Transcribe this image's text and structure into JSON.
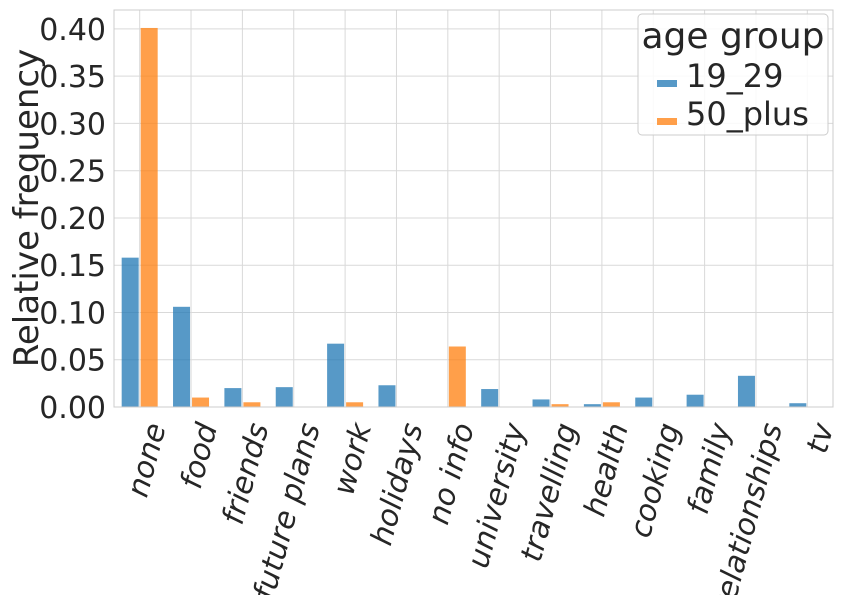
{
  "chart_data": {
    "type": "bar",
    "title": "",
    "xlabel": "",
    "ylabel": "Relative frequency",
    "ylim": [
      0,
      0.42
    ],
    "yticks": [
      "0.00",
      "0.05",
      "0.10",
      "0.15",
      "0.20",
      "0.25",
      "0.30",
      "0.35",
      "0.40"
    ],
    "grid": true,
    "legend": {
      "title": "age group",
      "placement": "top-right"
    },
    "categories": [
      "none",
      "food",
      "friends",
      "future plans",
      "work",
      "holidays",
      "no info",
      "university",
      "travelling",
      "health",
      "cooking",
      "family",
      "relationships",
      "tv"
    ],
    "series": [
      {
        "name": "19_29",
        "color": "#1f77b4",
        "values": [
          0.158,
          0.106,
          0.02,
          0.021,
          0.067,
          0.023,
          0.0,
          0.019,
          0.008,
          0.003,
          0.01,
          0.013,
          0.033,
          0.004
        ]
      },
      {
        "name": "50_plus",
        "color": "#ff7f0e",
        "values": [
          0.401,
          0.01,
          0.005,
          0.0,
          0.005,
          0.0,
          0.064,
          0.0,
          0.003,
          0.005,
          0.0,
          0.0,
          0.0,
          0.0
        ]
      }
    ]
  }
}
